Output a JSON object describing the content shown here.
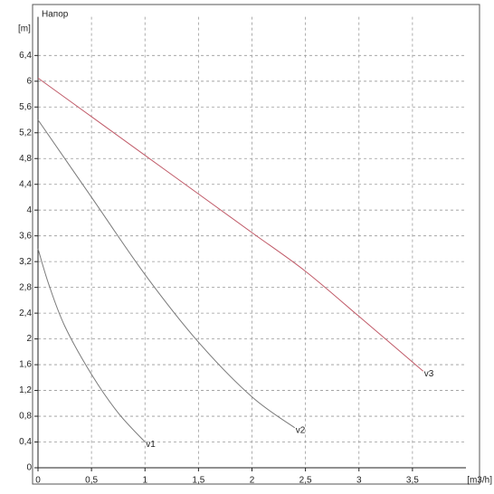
{
  "chart_data": {
    "type": "line",
    "title": "Напор",
    "x_label": "[m3/h]",
    "y_label": "[m]",
    "xlim": [
      0,
      4
    ],
    "ylim": [
      0,
      7
    ],
    "xticks": [
      0,
      {
        "value": 0.5,
        "label": "0,5"
      },
      1,
      {
        "value": 1.5,
        "label": "1,5"
      },
      2,
      {
        "value": 2.5,
        "label": "2,5"
      },
      3,
      {
        "value": 3.5,
        "label": "3,5"
      }
    ],
    "yticks": [
      0,
      {
        "value": 0.4,
        "label": "0,4"
      },
      {
        "value": 0.8,
        "label": "0,8"
      },
      {
        "value": 1.2,
        "label": "1,2"
      },
      {
        "value": 1.6,
        "label": "1,6"
      },
      2,
      {
        "value": 2.4,
        "label": "2,4"
      },
      {
        "value": 2.8,
        "label": "2,8"
      },
      {
        "value": 3.2,
        "label": "3,2"
      },
      {
        "value": 3.6,
        "label": "3,6"
      },
      4,
      {
        "value": 4.4,
        "label": "4,4"
      },
      {
        "value": 4.8,
        "label": "4,8"
      },
      {
        "value": 5.2,
        "label": "5,2"
      },
      {
        "value": 5.6,
        "label": "5,6"
      },
      6,
      {
        "value": 6.4,
        "label": "6,4"
      }
    ],
    "grid": true,
    "series": [
      {
        "name": "v1",
        "color": "#7a7a7a",
        "x": [
          0,
          0.1,
          0.25,
          0.5,
          0.75,
          1.0
        ],
        "values": [
          3.4,
          2.85,
          2.2,
          1.45,
          0.85,
          0.4
        ]
      },
      {
        "name": "v2",
        "color": "#7a7a7a",
        "x": [
          0,
          0.5,
          1,
          1.5,
          2,
          2.4
        ],
        "values": [
          5.4,
          4.2,
          3.0,
          1.95,
          1.1,
          0.62
        ]
      },
      {
        "name": "v3",
        "color": "#c05a68",
        "x": [
          0,
          0.5,
          1,
          1.5,
          2,
          2.5,
          3,
          3.6
        ],
        "values": [
          6.05,
          5.45,
          4.85,
          4.25,
          3.65,
          3.05,
          2.35,
          1.5
        ]
      }
    ]
  }
}
